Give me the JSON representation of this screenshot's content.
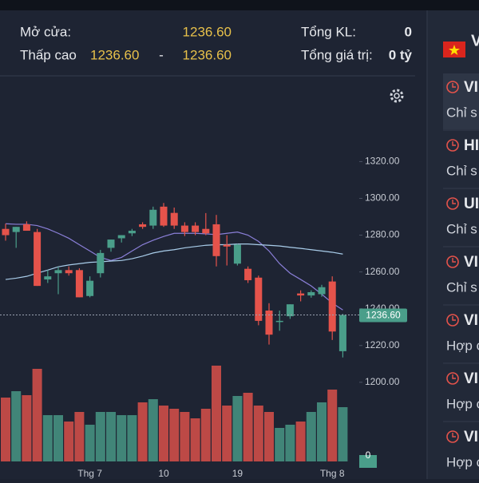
{
  "header": {
    "open_label": "Mở cửa:",
    "open_value": "1236.60",
    "range_label": "Thấp cao",
    "range_low": "1236.60",
    "range_sep": "-",
    "range_high": "1236.60",
    "volume_label": "Tổng KL:",
    "volume_value": "0",
    "value_label": "Tổng giá trị:",
    "value_value": "0 tỷ"
  },
  "sidebar": {
    "flag_text": "V",
    "items": [
      {
        "code": "VI",
        "desc": "Chỉ s"
      },
      {
        "code": "HI",
        "desc": "Chỉ s"
      },
      {
        "code": "UI",
        "desc": "Chỉ s"
      },
      {
        "code": "VI",
        "desc": "Chỉ s"
      },
      {
        "code": "VI",
        "desc": "Hợp c"
      },
      {
        "code": "VI",
        "desc": "Hợp c"
      },
      {
        "code": "VI",
        "desc": "Hợp c"
      }
    ]
  },
  "chart_data": {
    "type": "candlestick",
    "categories": [
      null,
      null,
      null,
      null,
      null,
      null,
      null,
      null,
      "Thg 7",
      null,
      null,
      null,
      null,
      null,
      null,
      "10",
      null,
      null,
      null,
      null,
      null,
      null,
      "19",
      null,
      null,
      null,
      null,
      null,
      null,
      null,
      null,
      "Thg 8",
      null
    ],
    "open": [
      1283.4,
      1281.7,
      1285.9,
      1281.7,
      1255.9,
      1259.3,
      1261,
      1261,
      1246.9,
      1259.3,
      1273.1,
      1278.3,
      1281,
      1285.9,
      1285.2,
      1295.5,
      1292.1,
      1285.2,
      1285.2,
      1283.4,
      1285.9,
      1274.8,
      1264.5,
      1261.7,
      1256.9,
      1239,
      1233.4,
      1235.9,
      1248.3,
      1247.2,
      1247.9,
      1254.8,
      1216.9
    ],
    "high": [
      1286.2,
      1284.5,
      1287.5,
      1283.4,
      1261,
      1262.8,
      1263,
      1262,
      1257.6,
      1272,
      1277.6,
      1280,
      1283.4,
      1287,
      1295.5,
      1297.5,
      1295,
      1287,
      1287,
      1292,
      1291,
      1280,
      1275.2,
      1263,
      1258,
      1243,
      1239,
      1242.4,
      1250,
      1250,
      1253,
      1257.6,
      1237.2
    ],
    "low": [
      1277,
      1273.1,
      1282.4,
      1252.4,
      1254,
      1247.9,
      1258,
      1246.2,
      1246.2,
      1257,
      1271,
      1276,
      1279.5,
      1283.4,
      1283.4,
      1284.5,
      1283.4,
      1279.5,
      1280,
      1280,
      1263,
      1263.5,
      1263.5,
      1254,
      1231,
      1220.5,
      1228,
      1234.5,
      1244,
      1246,
      1246.5,
      1223,
      1213.5
    ],
    "close": [
      1280,
      1284.5,
      1282.4,
      1252.4,
      1257.6,
      1261,
      1259.3,
      1246.2,
      1255.2,
      1270.3,
      1277.6,
      1280,
      1282.4,
      1284.5,
      1293.8,
      1285.2,
      1285.2,
      1281.7,
      1281.7,
      1281,
      1268.6,
      1273.8,
      1274.8,
      1255.5,
      1233.4,
      1225.9,
      1233.4,
      1242.4,
      1247.2,
      1249,
      1251.7,
      1227.6,
      1236.6
    ],
    "last_label": "1236.60",
    "last_value": 1236.6,
    "ma_series": [
      {
        "color": "#8a7fd8",
        "values": [
          1286.2,
          1285.9,
          1285.9,
          1285.2,
          1283.4,
          1281,
          1278.3,
          1274.8,
          1271.4,
          1267.9,
          1266.2,
          1267.9,
          1271.4,
          1274.8,
          1277.2,
          1279.3,
          1281,
          1281,
          1281,
          1280.7,
          1280.3,
          1281,
          1281.7,
          1280,
          1276.6,
          1271.4,
          1264.5,
          1259.3,
          1255.9,
          1252.4,
          1247.9,
          1243.1,
          1239.3
        ]
      },
      {
        "color": "#a9cdea",
        "values": [
          1255.9,
          1256.6,
          1257.6,
          1259.3,
          1261,
          1262.8,
          1263.8,
          1264.5,
          1265.2,
          1265.5,
          1265.9,
          1266.2,
          1267.2,
          1268.6,
          1270.3,
          1271.4,
          1272.1,
          1273.1,
          1273.8,
          1274.5,
          1274.8,
          1274.8,
          1275.2,
          1275.2,
          1274.8,
          1274.5,
          1274.1,
          1273.4,
          1272.8,
          1272.1,
          1271.4,
          1270.7,
          1269.7
        ]
      }
    ],
    "volume": [
      80,
      88,
      83,
      116,
      58,
      58,
      50,
      62,
      46,
      62,
      62,
      58,
      58,
      74,
      78,
      70,
      66,
      62,
      54,
      66,
      120,
      70,
      82,
      86,
      70,
      62,
      42,
      46,
      50,
      62,
      74,
      90,
      68
    ],
    "vlim": [
      0,
      130
    ],
    "vticks": [
      0
    ],
    "up_color": "#4a9e8a",
    "down_color": "#e5534b",
    "ylim": [
      1184.3,
      1334.5
    ],
    "yticks": [
      {
        "value": 1200,
        "label": "1200.00"
      },
      {
        "value": 1220,
        "label": "1220.00"
      },
      {
        "value": 1240,
        "label": "1240.00"
      },
      {
        "value": 1260,
        "label": "1260.00"
      },
      {
        "value": 1280,
        "label": "1280.00"
      },
      {
        "value": 1300,
        "label": "1300.00"
      },
      {
        "value": 1320,
        "label": "1320.00"
      }
    ]
  }
}
